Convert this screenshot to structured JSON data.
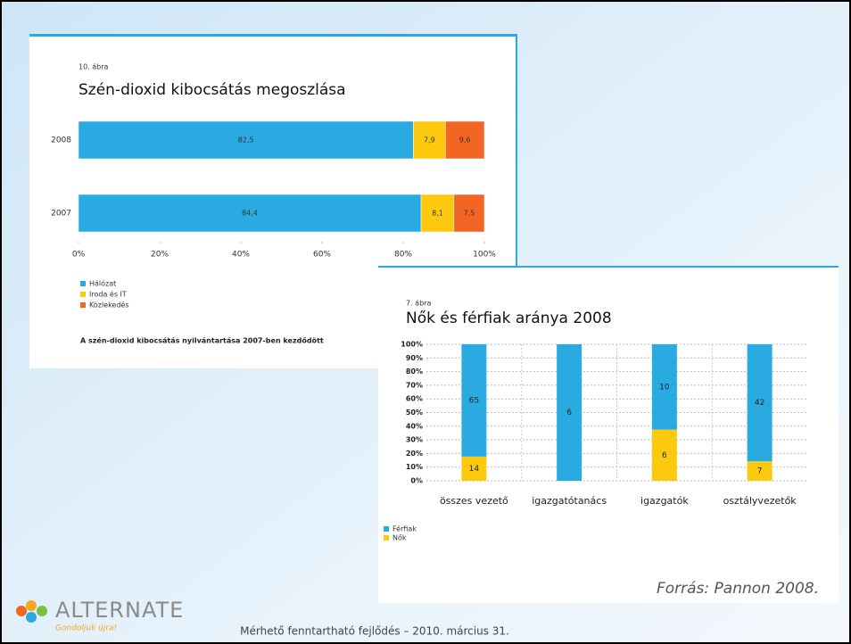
{
  "chart_data": [
    {
      "type": "bar",
      "orientation": "horizontal",
      "label": "10. ábra",
      "title": "Szén-dioxid kibocsátás megoszlása",
      "categories": [
        "2008",
        "2007"
      ],
      "series": [
        {
          "name": "Hálózat",
          "color": "#29aae1",
          "values": [
            82.5,
            84.4
          ],
          "value_labels": [
            "82,5",
            "84,4"
          ]
        },
        {
          "name": "Iroda és IT",
          "color": "#fdc90f",
          "values": [
            7.9,
            8.1
          ],
          "value_labels": [
            "7,9",
            "8,1"
          ]
        },
        {
          "name": "Közlekedés",
          "color": "#f26522",
          "values": [
            9.6,
            7.5
          ],
          "value_labels": [
            "9,6",
            "7,5"
          ]
        }
      ],
      "stacked": true,
      "xlim": [
        0,
        100
      ],
      "xticks": [
        {
          "value": 0,
          "label": "0%"
        },
        {
          "value": 20,
          "label": "20%"
        },
        {
          "value": 40,
          "label": "40%"
        },
        {
          "value": 60,
          "label": "60%"
        },
        {
          "value": 80,
          "label": "80%"
        },
        {
          "value": 100,
          "label": "100%"
        }
      ],
      "note": "A szén-dioxid kibocsátás nyilvántartása 2007-ben kezdődött"
    },
    {
      "type": "bar",
      "orientation": "vertical",
      "label": "7. ábra",
      "title": "Nők és férfiak aránya 2008",
      "categories": [
        "összes vezető",
        "igazgatótanács",
        "igazgatók",
        "osztályvezetők"
      ],
      "series": [
        {
          "name": "Férfiak",
          "color": "#29aae1",
          "values": [
            65,
            6,
            10,
            42
          ],
          "value_labels": [
            "65",
            "6",
            "10",
            "42"
          ]
        },
        {
          "name": "Nők",
          "color": "#fdc90f",
          "values": [
            14,
            0,
            6,
            7
          ],
          "value_labels": [
            "14",
            null,
            "6",
            "7"
          ]
        }
      ],
      "stacked": "percent",
      "grid": true,
      "ylim": [
        0,
        100
      ],
      "yticks": [
        {
          "value": 0,
          "label": "0%"
        },
        {
          "value": 10,
          "label": "10%"
        },
        {
          "value": 20,
          "label": "20%"
        },
        {
          "value": 30,
          "label": "30%"
        },
        {
          "value": 40,
          "label": "40%"
        },
        {
          "value": 50,
          "label": "50%"
        },
        {
          "value": 60,
          "label": "60%"
        },
        {
          "value": 70,
          "label": "70%"
        },
        {
          "value": 80,
          "label": "80%"
        },
        {
          "value": 90,
          "label": "90%"
        },
        {
          "value": 100,
          "label": "100%"
        }
      ]
    }
  ],
  "source": "Forrás: Pannon  2008.",
  "footer": "Mérhető fenntartható fejlődés – 2010. március 31.",
  "logo": {
    "name": "ALTERNATE",
    "slogan": "Gondoljuk újra!"
  }
}
